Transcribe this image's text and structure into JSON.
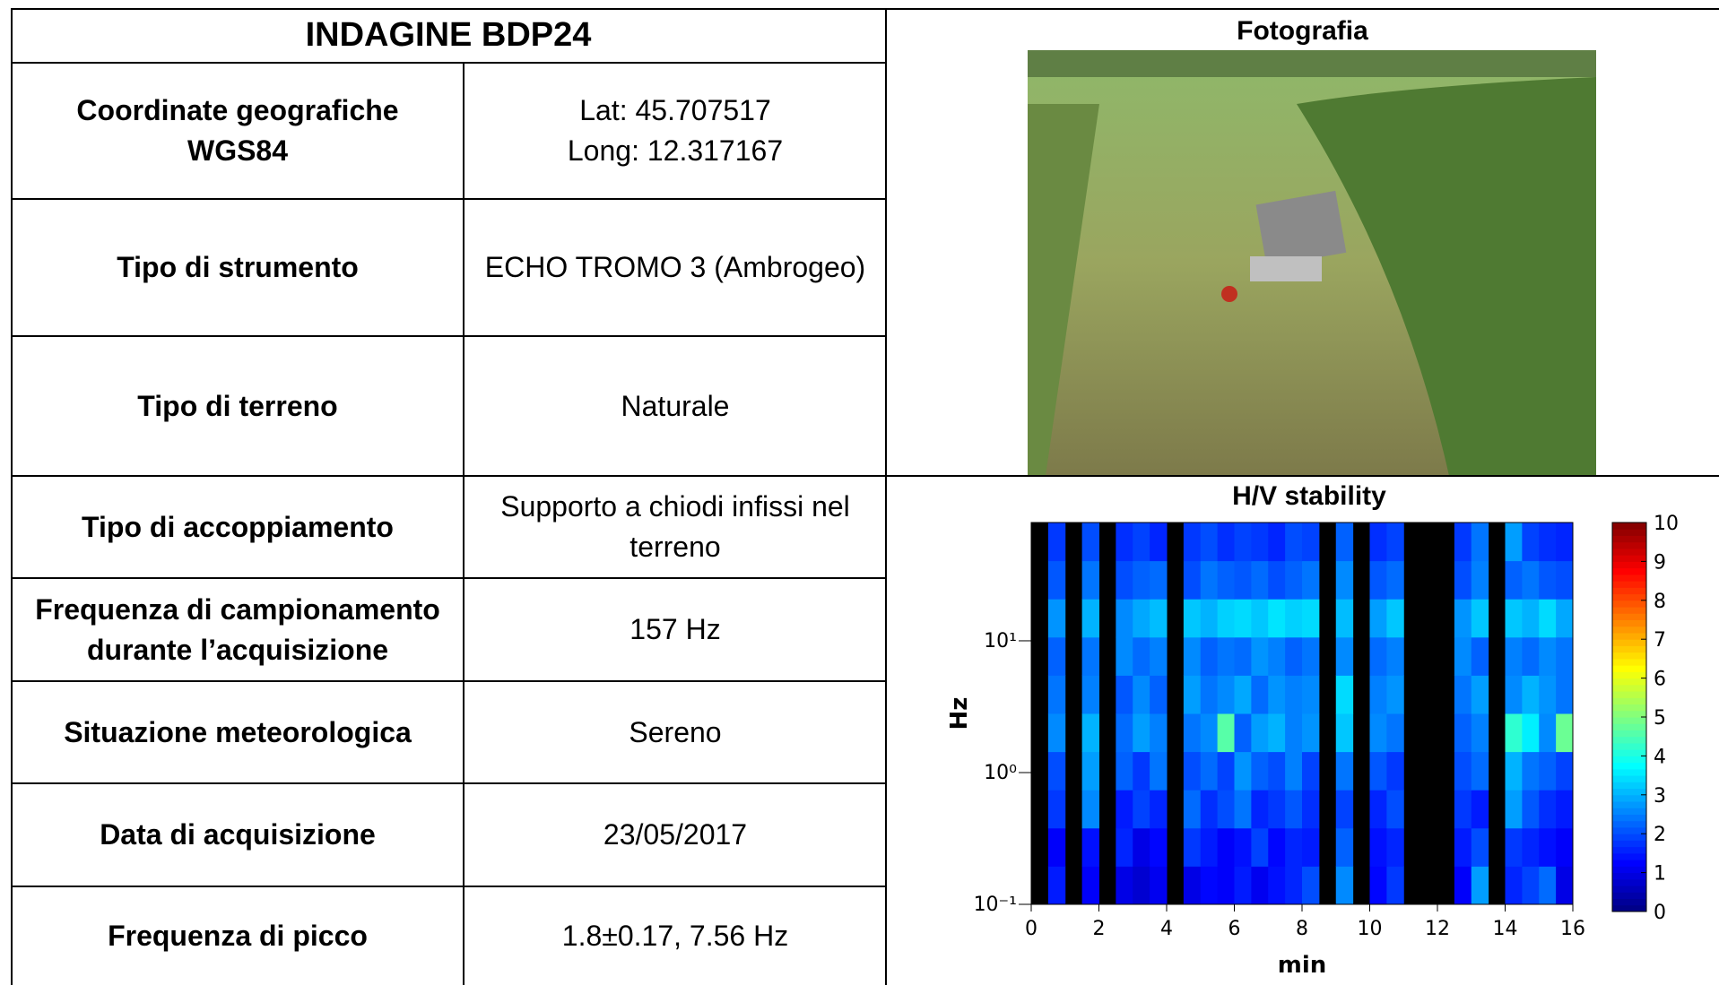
{
  "header": {
    "title": "INDAGINE BDP24"
  },
  "table": {
    "rows": [
      [
        "Coordinate geografiche\nWGS84",
        "Lat: 45.707517\nLong: 12.317167"
      ],
      [
        "Tipo di strumento",
        "ECHO TROMO 3 (Ambrogeo)"
      ],
      [
        "Tipo di terreno",
        "Naturale"
      ],
      [
        "Tipo di accoppiamento",
        "Supporto a chiodi infissi nel\nterreno"
      ],
      [
        "Frequenza di campionamento\ndurante l’acquisizione",
        "157 Hz"
      ],
      [
        "Situazione meteorologica",
        "Sereno"
      ],
      [
        "Data di acquisizione",
        "23/05/2017"
      ],
      [
        "Frequenza di picco",
        "1.8±0.17, 7.56 Hz"
      ]
    ]
  },
  "photo": {
    "title": "Fotografia"
  },
  "chart_data": {
    "type": "heatmap",
    "title": "H/V stability",
    "xlabel": "min",
    "ylabel": "Hz",
    "xlim": [
      0,
      16
    ],
    "xticks": [
      0,
      2,
      4,
      6,
      8,
      10,
      12,
      14,
      16
    ],
    "ylim": [
      0.1,
      79
    ],
    "yscale": "log",
    "yticks": [
      {
        "value": 0.1,
        "label": "10⁻¹"
      },
      {
        "value": 1,
        "label": "10⁰"
      },
      {
        "value": 10,
        "label": "10¹"
      }
    ],
    "colormap": "jet",
    "mask_color": "#000000",
    "zlim": [
      0,
      10
    ],
    "zticks": [
      0,
      1,
      2,
      3,
      4,
      5,
      6,
      7,
      8,
      9,
      10
    ],
    "z": [
      [
        null,
        1.5,
        null,
        1.2,
        null,
        1.0,
        0.8,
        1.1,
        null,
        1.0,
        1.3,
        1.2,
        1.5,
        1.1,
        1.4,
        1.6,
        2.0,
        null,
        2.6,
        null,
        1.3,
        1.8,
        null,
        null,
        null,
        1.2,
        2.8,
        null,
        1.6,
        1.9,
        2.3,
        1.0
      ],
      [
        null,
        1.2,
        null,
        1.4,
        null,
        1.6,
        1.0,
        1.3,
        null,
        1.8,
        1.5,
        1.2,
        1.4,
        1.9,
        1.3,
        1.6,
        1.5,
        null,
        2.2,
        null,
        1.4,
        1.6,
        null,
        null,
        null,
        1.5,
        2.0,
        null,
        1.8,
        1.6,
        1.4,
        1.2
      ],
      [
        null,
        1.8,
        null,
        2.6,
        null,
        1.5,
        1.9,
        1.6,
        null,
        2.3,
        1.7,
        2.0,
        2.4,
        1.6,
        1.8,
        2.1,
        1.7,
        null,
        1.9,
        null,
        1.6,
        2.0,
        null,
        null,
        null,
        1.8,
        1.5,
        null,
        2.8,
        2.1,
        1.7,
        1.5
      ],
      [
        null,
        2.0,
        null,
        2.8,
        null,
        2.2,
        1.8,
        2.4,
        null,
        2.0,
        2.3,
        1.9,
        2.7,
        2.2,
        2.0,
        2.5,
        1.9,
        null,
        2.4,
        null,
        2.1,
        1.8,
        null,
        null,
        null,
        2.0,
        2.3,
        null,
        3.0,
        2.4,
        2.2,
        1.9
      ],
      [
        null,
        2.6,
        null,
        3.0,
        null,
        2.3,
        2.8,
        2.5,
        null,
        2.4,
        2.6,
        4.6,
        2.2,
        2.8,
        3.0,
        2.5,
        2.7,
        null,
        3.2,
        null,
        2.6,
        2.4,
        null,
        null,
        null,
        2.2,
        2.5,
        null,
        4.2,
        3.6,
        2.6,
        4.8
      ],
      [
        null,
        2.4,
        null,
        2.5,
        null,
        2.1,
        2.6,
        2.2,
        null,
        2.8,
        2.4,
        2.6,
        2.9,
        2.3,
        2.7,
        2.5,
        2.6,
        null,
        3.4,
        null,
        2.5,
        2.7,
        null,
        null,
        null,
        2.4,
        2.8,
        null,
        2.6,
        3.0,
        2.7,
        2.4
      ],
      [
        null,
        2.2,
        null,
        2.4,
        null,
        2.6,
        2.3,
        2.5,
        null,
        2.6,
        2.2,
        2.4,
        2.3,
        2.7,
        2.5,
        2.2,
        2.4,
        null,
        2.6,
        null,
        2.3,
        2.5,
        null,
        null,
        null,
        2.6,
        2.2,
        null,
        2.5,
        2.3,
        2.6,
        2.4
      ],
      [
        null,
        2.7,
        null,
        3.0,
        null,
        2.6,
        2.9,
        3.1,
        null,
        3.2,
        3.0,
        3.3,
        3.4,
        3.2,
        3.5,
        3.3,
        3.4,
        null,
        3.1,
        null,
        2.8,
        3.2,
        null,
        null,
        null,
        2.7,
        3.2,
        null,
        3.2,
        3.0,
        3.4,
        2.9
      ],
      [
        null,
        2.1,
        null,
        2.4,
        null,
        2.0,
        2.2,
        2.3,
        null,
        2.0,
        2.4,
        2.2,
        2.1,
        2.3,
        2.0,
        2.2,
        2.4,
        null,
        2.6,
        null,
        2.1,
        2.3,
        null,
        null,
        null,
        2.0,
        2.5,
        null,
        2.2,
        2.4,
        2.1,
        2.0
      ],
      [
        null,
        1.8,
        null,
        2.0,
        null,
        1.7,
        1.9,
        1.6,
        null,
        1.8,
        2.0,
        1.7,
        1.9,
        1.8,
        1.6,
        2.0,
        1.9,
        null,
        2.2,
        null,
        1.7,
        1.9,
        null,
        null,
        null,
        1.8,
        2.4,
        null,
        2.8,
        1.9,
        1.7,
        1.6
      ]
    ]
  }
}
